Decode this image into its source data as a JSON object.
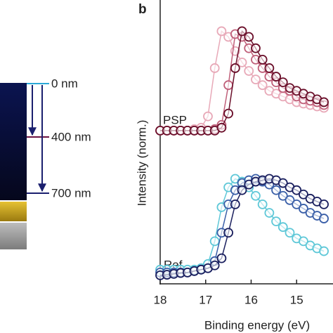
{
  "panel_a": {
    "depth_labels": [
      "0 nm",
      "400 nm",
      "700 nm"
    ]
  },
  "chart_data": {
    "type": "line",
    "markers": true,
    "panel_label": "b",
    "x_label": "Binding energy (eV)",
    "y_label": "Intensity (norm.)",
    "annotations": [
      {
        "text": "PSP",
        "color": "#9b1b45"
      },
      {
        "text": "Ref.",
        "color": "#1f3a8a"
      }
    ],
    "x": [
      18.0,
      17.85,
      17.7,
      17.55,
      17.4,
      17.25,
      17.1,
      16.95,
      16.8,
      16.65,
      16.5,
      16.35,
      16.2,
      16.05,
      15.9,
      15.75,
      15.6,
      15.45,
      15.3,
      15.15,
      15.0,
      14.85,
      14.7,
      14.55,
      14.4
    ],
    "series": [
      {
        "color": "#e8a9b8",
        "values": [
          5.4,
          5.4,
          5.4,
          5.4,
          5.4,
          5.45,
          5.5,
          5.9,
          7.6,
          8.9,
          8.7,
          8.2,
          7.8,
          7.5,
          7.2,
          7.0,
          6.8,
          6.7,
          6.6,
          6.5,
          6.4,
          6.35,
          6.3,
          6.25,
          6.2
        ]
      },
      {
        "color": "#c0607a",
        "values": [
          5.4,
          5.4,
          5.4,
          5.4,
          5.4,
          5.4,
          5.4,
          5.4,
          5.45,
          5.6,
          7.0,
          8.8,
          8.7,
          8.3,
          7.9,
          7.6,
          7.3,
          7.1,
          6.9,
          6.8,
          6.6,
          6.5,
          6.45,
          6.4,
          6.3
        ]
      },
      {
        "color": "#6b0f2a",
        "values": [
          5.4,
          5.4,
          5.4,
          5.4,
          5.4,
          5.4,
          5.4,
          5.4,
          5.4,
          5.5,
          6.0,
          7.6,
          8.9,
          8.7,
          8.3,
          7.9,
          7.6,
          7.3,
          7.1,
          6.9,
          6.8,
          6.7,
          6.6,
          6.5,
          6.4
        ]
      },
      {
        "color": "#5fc8d8",
        "values": [
          0.5,
          0.5,
          0.5,
          0.5,
          0.5,
          0.5,
          0.55,
          0.7,
          1.5,
          2.7,
          3.4,
          3.7,
          3.6,
          3.4,
          3.1,
          2.8,
          2.5,
          2.2,
          2.0,
          1.8,
          1.6,
          1.5,
          1.35,
          1.25,
          1.15
        ]
      },
      {
        "color": "#3a5fa8",
        "values": [
          0.4,
          0.4,
          0.4,
          0.4,
          0.4,
          0.45,
          0.5,
          0.55,
          0.8,
          1.8,
          2.8,
          3.3,
          3.55,
          3.65,
          3.7,
          3.6,
          3.5,
          3.3,
          3.1,
          2.95,
          2.8,
          2.65,
          2.5,
          2.4,
          2.3
        ]
      },
      {
        "color": "#1a1f5e",
        "values": [
          0.3,
          0.32,
          0.35,
          0.38,
          0.4,
          0.45,
          0.5,
          0.55,
          0.65,
          0.9,
          1.8,
          2.8,
          3.3,
          3.5,
          3.6,
          3.65,
          3.7,
          3.65,
          3.55,
          3.4,
          3.3,
          3.15,
          3.0,
          2.9,
          2.8
        ]
      }
    ],
    "xlim": [
      18,
      14.2
    ],
    "ylim": [
      0,
      10
    ],
    "xticks": [
      18,
      17,
      16,
      15
    ]
  }
}
